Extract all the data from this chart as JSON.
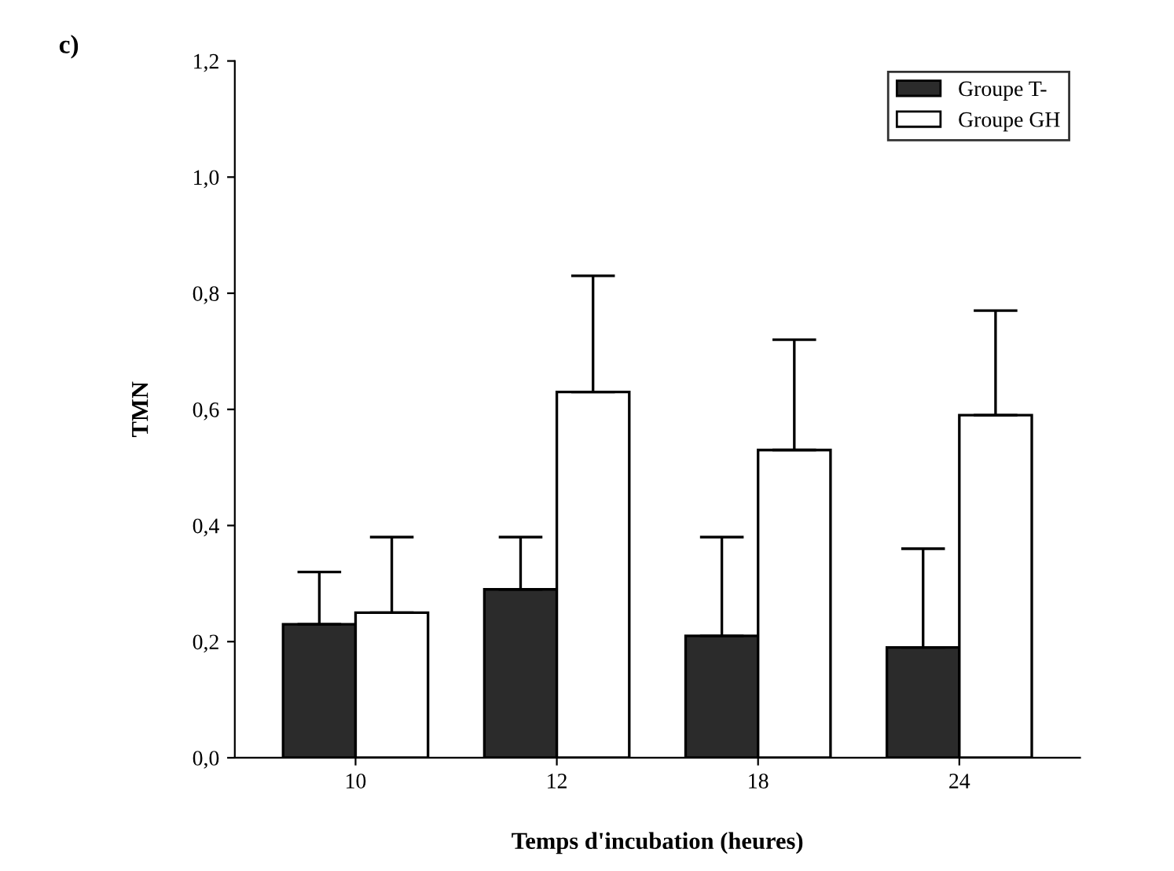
{
  "chart_data": {
    "type": "bar",
    "title": "c)",
    "xlabel": "Temps d'incubation (heures)",
    "ylabel": "TMN",
    "categories": [
      "10",
      "12",
      "18",
      "24"
    ],
    "series": [
      {
        "name": "Groupe T-",
        "color": "#2b2b2b",
        "values": [
          0.23,
          0.29,
          0.21,
          0.19
        ],
        "errors": [
          [
            0.23,
            0.32
          ],
          [
            0.29,
            0.38
          ],
          [
            0.21,
            0.38
          ],
          [
            0.19,
            0.36
          ]
        ]
      },
      {
        "name": "Groupe GH",
        "color": "#ffffff",
        "values": [
          0.25,
          0.63,
          0.53,
          0.59
        ],
        "errors": [
          [
            0.25,
            0.38
          ],
          [
            0.63,
            0.83
          ],
          [
            0.53,
            0.72
          ],
          [
            0.59,
            0.77
          ]
        ]
      }
    ],
    "ylim": [
      0,
      1.2
    ],
    "yticks": [
      {
        "value": 0,
        "label": "0,0"
      },
      {
        "value": 0.2,
        "label": "0,2"
      },
      {
        "value": 0.4,
        "label": "0,4"
      },
      {
        "value": 0.6,
        "label": "0,6"
      },
      {
        "value": 0.8,
        "label": "0,8"
      },
      {
        "value": 1.0,
        "label": "1,0"
      },
      {
        "value": 1.2,
        "label": "1,2"
      }
    ],
    "grid": false,
    "legend": "top right"
  }
}
